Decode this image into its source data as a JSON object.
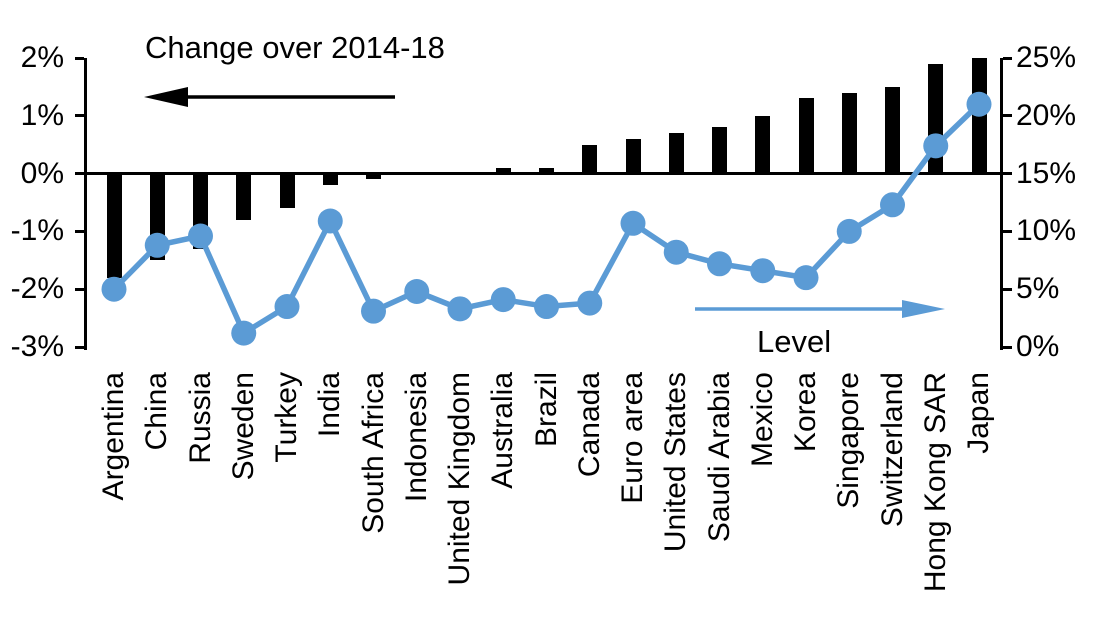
{
  "chart_data": {
    "type": "bar+line combo",
    "title_left": "Change over 2014-18",
    "title_right": "Level",
    "grid": false,
    "legend_position": "in-plot annotations with directional arrows",
    "categories": [
      "Argentina",
      "China",
      "Russia",
      "Sweden",
      "Turkey",
      "India",
      "South Africa",
      "Indonesia",
      "United Kingdom",
      "Australia",
      "Brazil",
      "Canada",
      "Euro area",
      "United States",
      "Saudi Arabia",
      "Mexico",
      "Korea",
      "Singapore",
      "Switzerland",
      "Hong Kong SAR",
      "Japan"
    ],
    "series": [
      {
        "name": "Change over 2014-18",
        "type": "bar",
        "axis": "left",
        "color": "#000000",
        "values": [
          -1.8,
          -1.5,
          -1.3,
          -0.8,
          -0.6,
          -0.2,
          -0.1,
          0,
          0,
          0.1,
          0.1,
          0.5,
          0.6,
          0.7,
          0.8,
          1.0,
          1.3,
          1.4,
          1.5,
          1.9,
          2.0
        ]
      },
      {
        "name": "Level",
        "type": "line",
        "axis": "right",
        "color": "#5B9BD5",
        "values": [
          5.0,
          8.8,
          9.6,
          1.2,
          3.5,
          10.9,
          3.1,
          4.8,
          3.3,
          4.1,
          3.5,
          3.8,
          10.7,
          8.2,
          7.2,
          6.6,
          6.0,
          10.0,
          12.3,
          17.4,
          21.0
        ]
      }
    ],
    "left_axis": {
      "tick_labels": [
        "2%",
        "1%",
        "0%",
        "-1%",
        "-2%",
        "-3%"
      ],
      "tick_values": [
        2,
        1,
        0,
        -1,
        -2,
        -3
      ],
      "ylim": [
        -3,
        2
      ]
    },
    "right_axis": {
      "tick_labels": [
        "25%",
        "20%",
        "15%",
        "10%",
        "5%",
        "0%"
      ],
      "tick_values": [
        25,
        20,
        15,
        10,
        5,
        0
      ],
      "ylim": [
        0,
        25
      ]
    },
    "arrows": {
      "left_arrow_color": "#000000",
      "right_arrow_color": "#5B9BD5"
    }
  }
}
